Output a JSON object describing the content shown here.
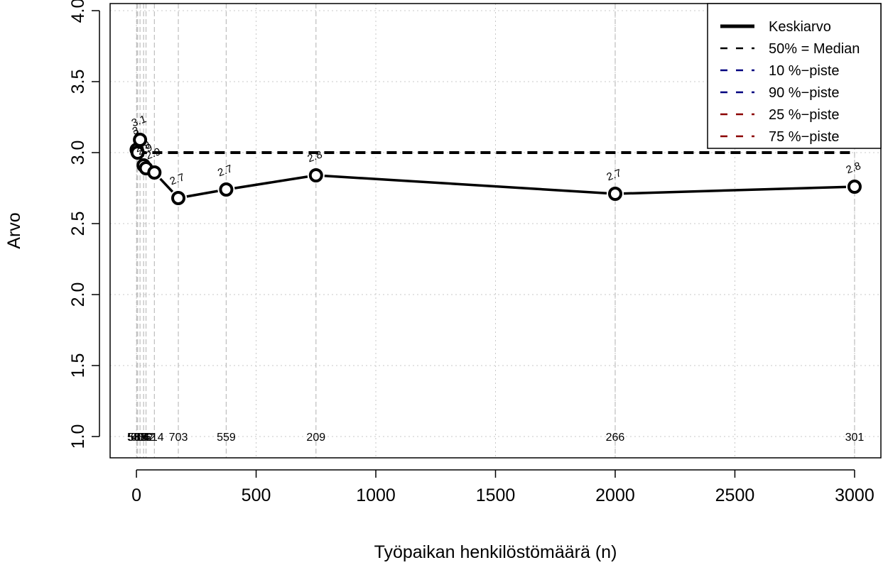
{
  "chart_data": {
    "type": "line",
    "title": "",
    "xlabel": "Työpaikan henkilöstömäärä (n)",
    "ylabel": "Arvo",
    "xlim": [
      -110,
      3110
    ],
    "ylim": [
      0.85,
      4.05
    ],
    "x_ticks": [
      0,
      500,
      1000,
      1500,
      2000,
      2500,
      3000
    ],
    "y_ticks": [
      "1.0",
      "1.5",
      "2.0",
      "2.5",
      "3.0",
      "3.5",
      "4.0"
    ],
    "grid": true,
    "legend_position": "top-right",
    "x": [
      1,
      5,
      15,
      30,
      40,
      75,
      175,
      375,
      750,
      2000,
      3000
    ],
    "series": [
      {
        "name": "Keskiarvo",
        "values": [
          3.02,
          3.0,
          3.09,
          2.91,
          2.89,
          2.86,
          2.68,
          2.74,
          2.84,
          2.71,
          2.76
        ],
        "labels": [
          "3",
          "3",
          "3.1",
          "2.9",
          "2.9",
          "2.9",
          "2.7",
          "2.7",
          "2.8",
          "2.7",
          "2.8"
        ],
        "color": "#000000",
        "style": "solid-with-markers"
      },
      {
        "name": "50% = Median",
        "values": [
          3,
          3,
          3,
          3,
          3,
          3,
          3,
          3,
          3,
          3,
          3
        ],
        "color": "#000000",
        "style": "dashed"
      }
    ],
    "legend": [
      {
        "label": "Keskiarvo",
        "color": "#000000",
        "style": "solid-thick"
      },
      {
        "label": "50% = Median",
        "color": "#000000",
        "style": "dashed"
      },
      {
        "label": "10 %−piste",
        "color": "#00007f",
        "style": "dashed"
      },
      {
        "label": "90 %−piste",
        "color": "#00007f",
        "style": "dashed"
      },
      {
        "label": "25 %−piste",
        "color": "#8b0000",
        "style": "dashed"
      },
      {
        "label": "75 %−piste",
        "color": "#8b0000",
        "style": "dashed"
      }
    ],
    "counts": [
      "581",
      "585",
      "606",
      "582",
      "542",
      "614",
      "703",
      "559",
      "209",
      "266",
      "301"
    ],
    "counts_y": 1.0
  }
}
